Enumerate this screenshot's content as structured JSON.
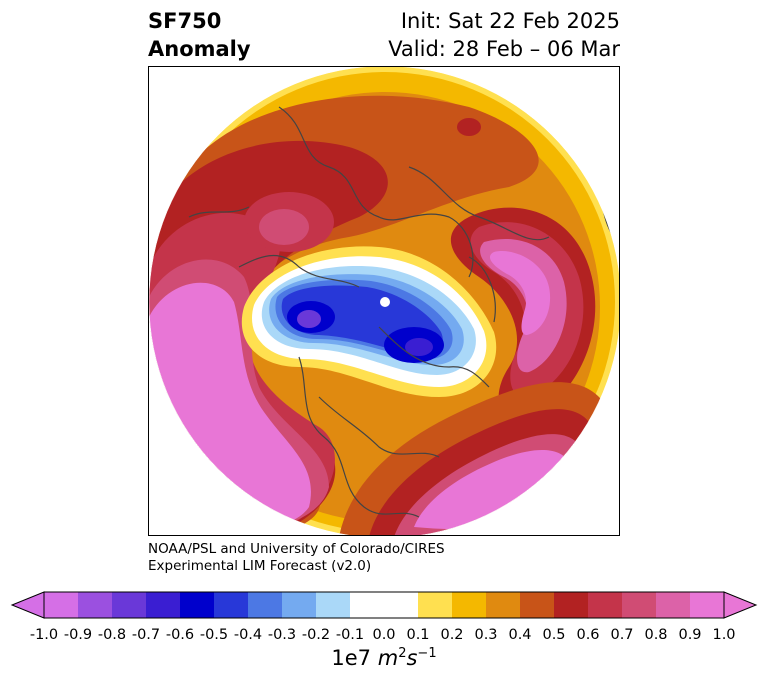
{
  "title": {
    "line1": "SF750",
    "line2": "Anomaly",
    "init": "Init: Sat 22 Feb 2025",
    "valid": "Valid: 28 Feb – 06 Mar"
  },
  "credit": {
    "line1": "NOAA/PSL and University of Colorado/CIRES",
    "line2": "Experimental LIM Forecast (v2.0)"
  },
  "colorbar": {
    "levels": [
      "-1.0",
      "-0.9",
      "-0.8",
      "-0.7",
      "-0.6",
      "-0.5",
      "-0.4",
      "-0.3",
      "-0.2",
      "-0.1",
      "0.0",
      "0.1",
      "0.2",
      "0.3",
      "0.4",
      "0.5",
      "0.6",
      "0.7",
      "0.8",
      "0.9",
      "1.0"
    ],
    "colors": [
      "#d56fe6",
      "#9b50e0",
      "#6a38d8",
      "#3a1ed2",
      "#0000cc",
      "#2838d8",
      "#4c78e4",
      "#74aaf0",
      "#aad8f8",
      "#ffffff",
      "#ffffff",
      "#ffe050",
      "#f4b800",
      "#e08a10",
      "#c85418",
      "#b22222",
      "#c4344a",
      "#d04c74",
      "#dc62a8",
      "#e876d6"
    ],
    "under_color": "#d56fe6",
    "over_color": "#e876d6",
    "units_prefix": "1e7 ",
    "units_unit": "m",
    "units_exp1": "2",
    "units_s": "s",
    "units_exp2": "−1"
  }
}
